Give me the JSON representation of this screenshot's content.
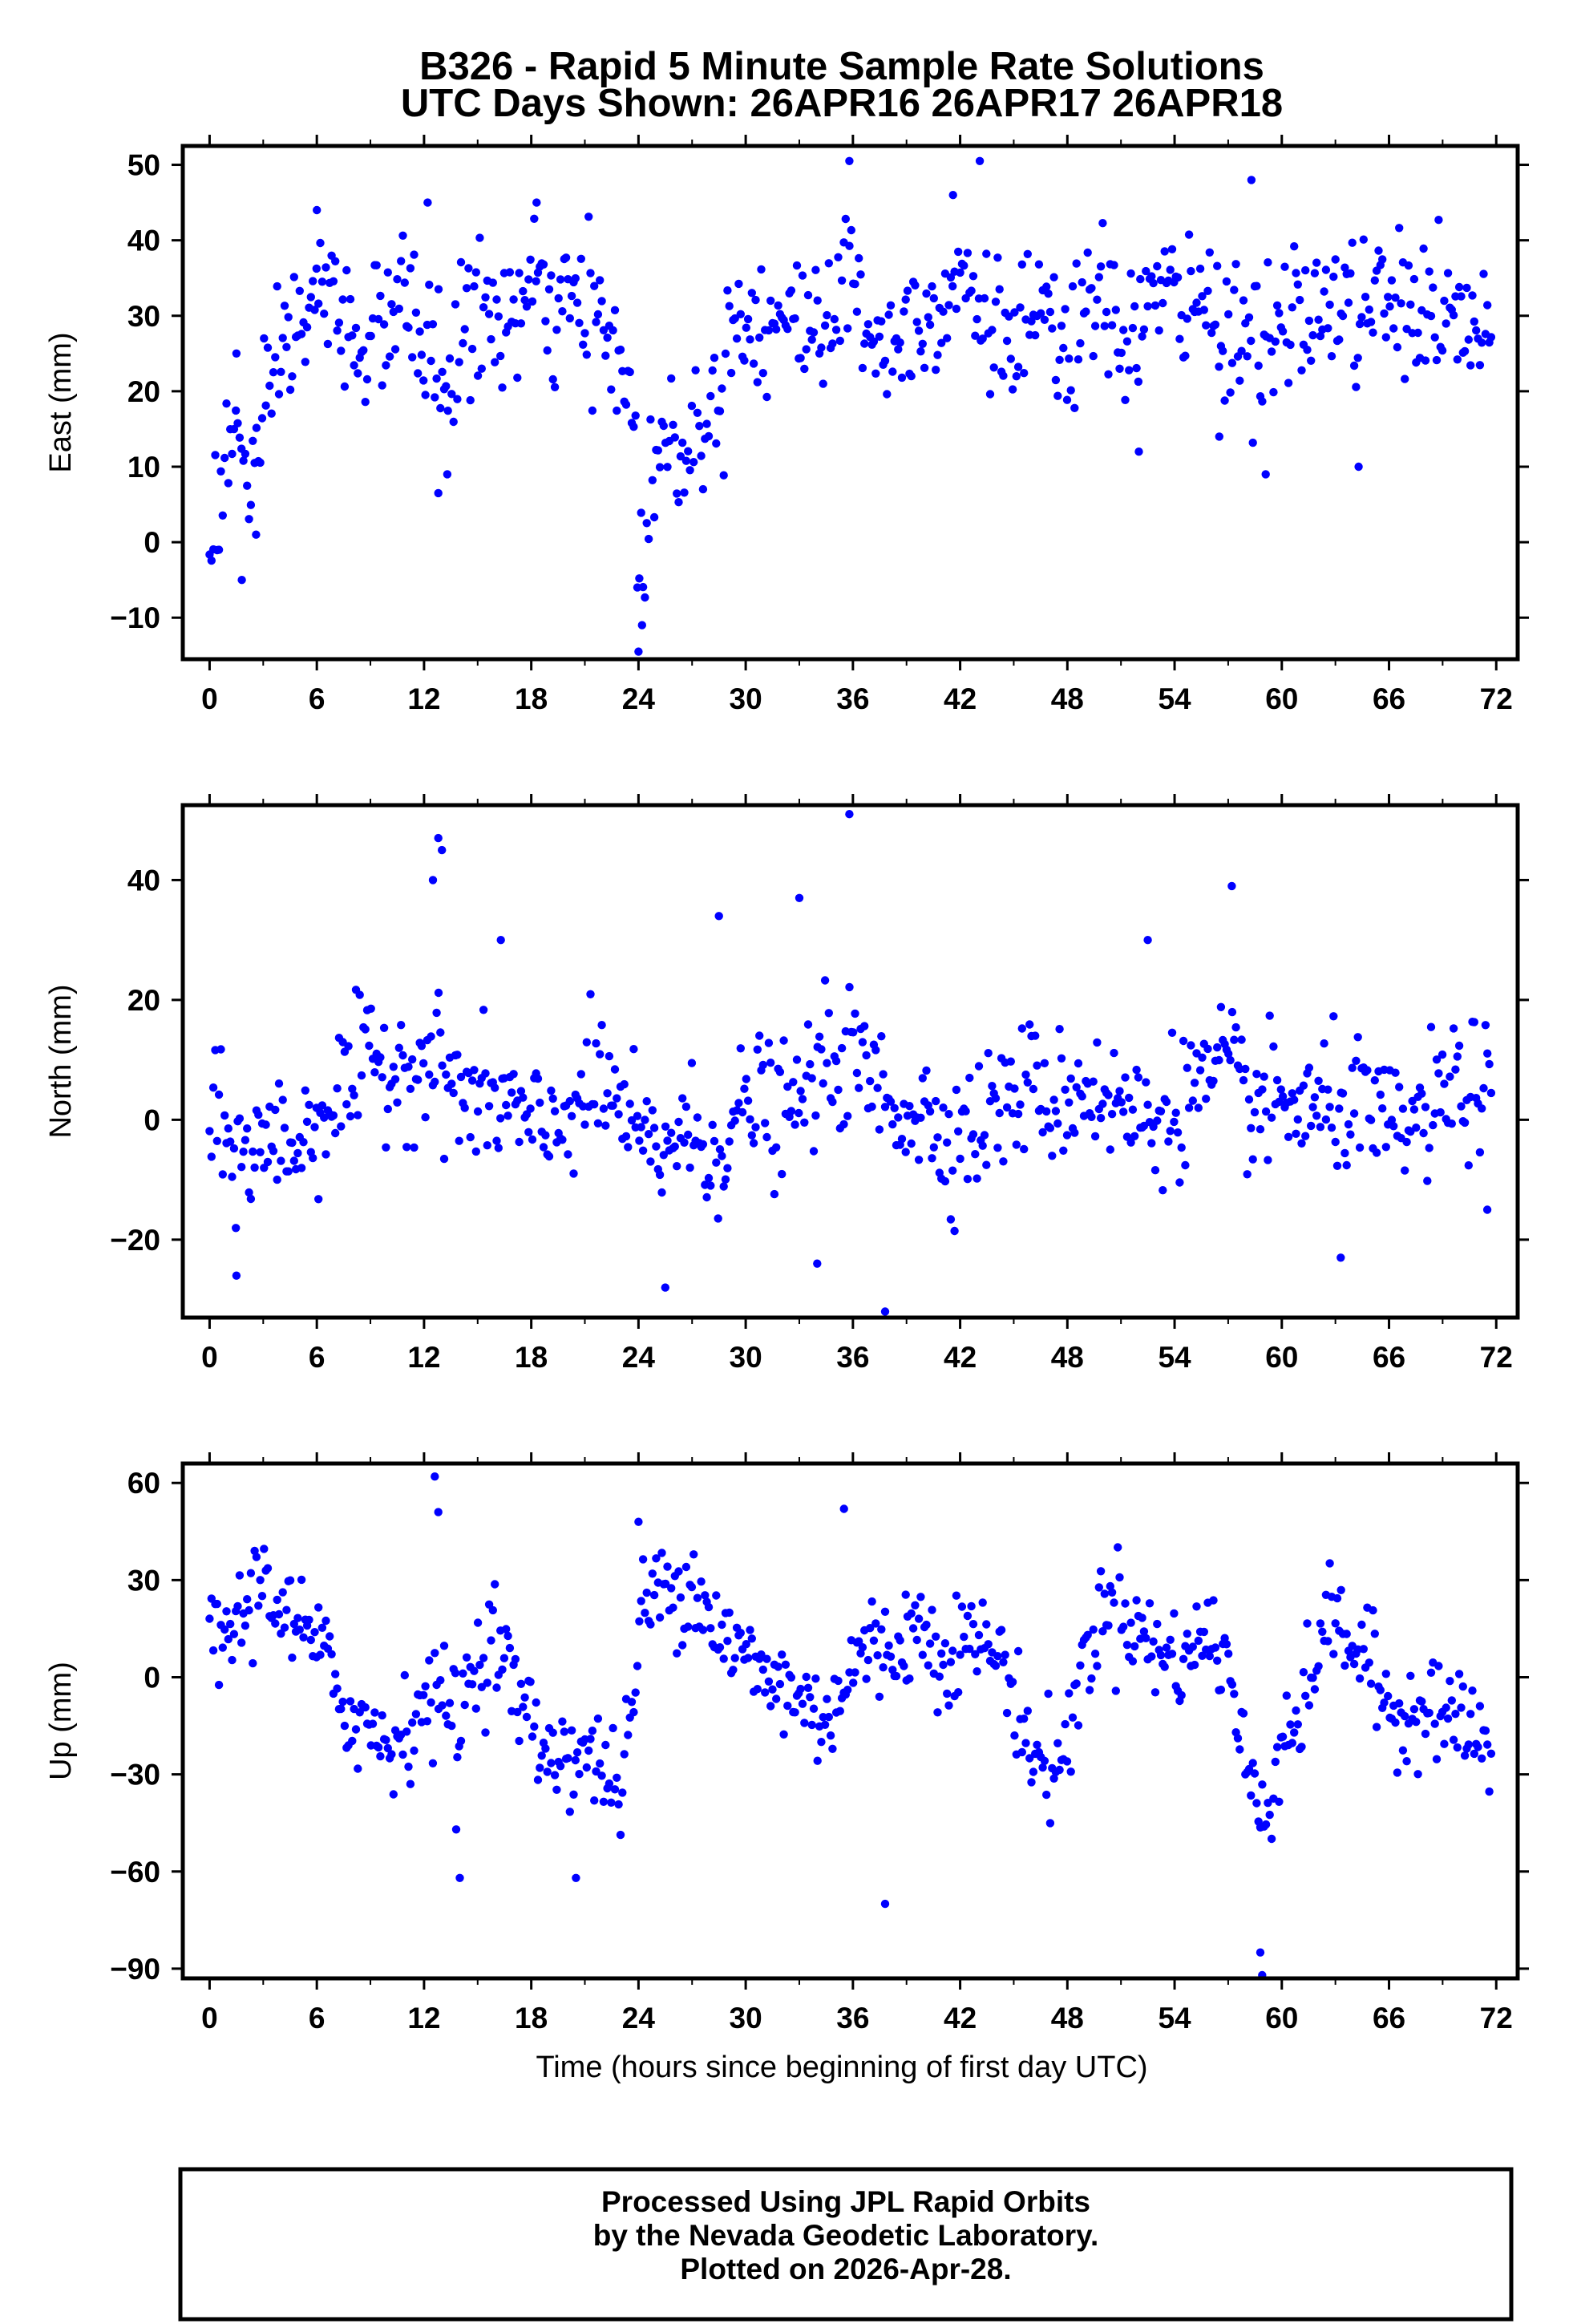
{
  "title_line1": "B326 - Rapid 5 Minute Sample Rate Solutions",
  "title_line2": "UTC Days Shown:  26APR16 26APR17 26APR18",
  "xlabel": "Time (hours since beginning of first day UTC)",
  "footer": {
    "line1": "Processed Using JPL Rapid Orbits",
    "line2": "by the Nevada Geodetic Laboratory.",
    "line3": "Plotted on 2026-Apr-28."
  },
  "colors": {
    "points": "#0000ff",
    "frame": "#000000"
  },
  "chart_data": [
    {
      "type": "scatter",
      "ylabel": "East (mm)",
      "xlim": [
        -1.5,
        73.2
      ],
      "ylim": [
        -15.5,
        52.5
      ],
      "xticks": [
        0,
        6,
        12,
        18,
        24,
        30,
        36,
        42,
        48,
        54,
        60,
        66,
        72
      ],
      "xtick_labels": [
        "0",
        "6",
        "12",
        "18",
        "24",
        "30",
        "36",
        "42",
        "48",
        "54",
        "60",
        "66",
        "72"
      ],
      "yticks": [
        -10,
        0,
        10,
        20,
        30,
        40,
        50
      ],
      "ytick_labels": [
        "−10",
        "0",
        "10",
        "20",
        "30",
        "40",
        "50"
      ],
      "series_name": "east",
      "anchors": [
        [
          0,
          0
        ],
        [
          0.5,
          6
        ],
        [
          1,
          11
        ],
        [
          1.5,
          15
        ],
        [
          2,
          10
        ],
        [
          2.5,
          9
        ],
        [
          3,
          12
        ],
        [
          3.5,
          20
        ],
        [
          4,
          26
        ],
        [
          5,
          28
        ],
        [
          6,
          33
        ],
        [
          7,
          31
        ],
        [
          8,
          28
        ],
        [
          9,
          26
        ],
        [
          10,
          30
        ],
        [
          11,
          31
        ],
        [
          12,
          28
        ],
        [
          13,
          21
        ],
        [
          14,
          26
        ],
        [
          15,
          31
        ],
        [
          16,
          29
        ],
        [
          17,
          30
        ],
        [
          18,
          33
        ],
        [
          19,
          31
        ],
        [
          20,
          30
        ],
        [
          21,
          31
        ],
        [
          22,
          28
        ],
        [
          23,
          24
        ],
        [
          23.7,
          18
        ],
        [
          24,
          -4
        ],
        [
          24.5,
          4
        ],
        [
          25,
          12
        ],
        [
          26,
          13
        ],
        [
          27,
          15
        ],
        [
          28,
          16
        ],
        [
          29,
          27
        ],
        [
          30,
          31
        ],
        [
          31,
          29
        ],
        [
          32,
          30
        ],
        [
          33,
          28
        ],
        [
          34,
          30
        ],
        [
          35,
          32
        ],
        [
          36,
          34
        ],
        [
          37,
          29
        ],
        [
          38,
          26
        ],
        [
          39,
          28
        ],
        [
          40,
          31
        ],
        [
          41,
          33
        ],
        [
          42,
          36
        ],
        [
          43,
          32
        ],
        [
          44,
          28
        ],
        [
          45,
          27
        ],
        [
          46,
          29
        ],
        [
          47,
          27
        ],
        [
          48,
          25
        ],
        [
          49,
          30
        ],
        [
          50,
          31
        ],
        [
          51,
          28
        ],
        [
          52,
          29
        ],
        [
          53,
          33
        ],
        [
          54,
          32
        ],
        [
          55,
          31
        ],
        [
          56,
          31
        ],
        [
          57,
          30
        ],
        [
          58,
          27
        ],
        [
          59,
          25
        ],
        [
          60,
          27
        ],
        [
          61,
          31
        ],
        [
          62,
          30
        ],
        [
          63,
          32
        ],
        [
          64,
          30
        ],
        [
          65,
          31
        ],
        [
          66,
          32
        ],
        [
          67,
          30
        ],
        [
          68,
          32
        ],
        [
          69,
          29
        ],
        [
          70,
          29
        ],
        [
          71,
          28
        ],
        [
          72,
          25
        ]
      ],
      "noise_sd": 4.8,
      "outliers": [
        [
          1.5,
          25
        ],
        [
          1.8,
          -5
        ],
        [
          2.6,
          1
        ],
        [
          6,
          44
        ],
        [
          12.2,
          45
        ],
        [
          12.8,
          6.5
        ],
        [
          13.3,
          9
        ],
        [
          18.3,
          45
        ],
        [
          24,
          -14.5
        ],
        [
          24.2,
          -11
        ],
        [
          35.8,
          50.5
        ],
        [
          41.6,
          46
        ],
        [
          43.1,
          50.5
        ],
        [
          52,
          12
        ],
        [
          56.5,
          14
        ],
        [
          58.3,
          48
        ],
        [
          59.1,
          9
        ],
        [
          64.3,
          10
        ]
      ]
    },
    {
      "type": "scatter",
      "ylabel": "North (mm)",
      "xlim": [
        -1.5,
        73.2
      ],
      "ylim": [
        -33,
        52.5
      ],
      "xticks": [
        0,
        6,
        12,
        18,
        24,
        30,
        36,
        42,
        48,
        54,
        60,
        66,
        72
      ],
      "xtick_labels": [
        "0",
        "6",
        "12",
        "18",
        "24",
        "30",
        "36",
        "42",
        "48",
        "54",
        "60",
        "66",
        "72"
      ],
      "yticks": [
        -20,
        0,
        20,
        40
      ],
      "ytick_labels": [
        "−20",
        "0",
        "20",
        "40"
      ],
      "series_name": "north",
      "anchors": [
        [
          0,
          0
        ],
        [
          1,
          -4
        ],
        [
          2,
          -6
        ],
        [
          3,
          -4
        ],
        [
          4,
          -3
        ],
        [
          5,
          -4
        ],
        [
          6,
          0
        ],
        [
          7,
          4
        ],
        [
          8,
          6
        ],
        [
          9,
          10
        ],
        [
          10,
          9
        ],
        [
          11,
          9
        ],
        [
          12,
          11
        ],
        [
          13,
          8
        ],
        [
          14,
          5
        ],
        [
          15,
          2
        ],
        [
          16,
          3
        ],
        [
          17,
          2
        ],
        [
          18,
          -2
        ],
        [
          19,
          -3
        ],
        [
          20,
          2
        ],
        [
          21,
          4
        ],
        [
          22,
          6
        ],
        [
          23,
          2
        ],
        [
          24,
          -4
        ],
        [
          25,
          -6
        ],
        [
          26,
          -2
        ],
        [
          27,
          -3
        ],
        [
          28,
          -5
        ],
        [
          29,
          -3
        ],
        [
          30,
          2
        ],
        [
          31,
          4
        ],
        [
          32,
          -1
        ],
        [
          33,
          3
        ],
        [
          34,
          8
        ],
        [
          35,
          10
        ],
        [
          36,
          10
        ],
        [
          37,
          7
        ],
        [
          38,
          3
        ],
        [
          39,
          2
        ],
        [
          40,
          1
        ],
        [
          41,
          -2
        ],
        [
          42,
          -2
        ],
        [
          43,
          -1
        ],
        [
          44,
          2
        ],
        [
          45,
          4
        ],
        [
          46,
          6
        ],
        [
          47,
          3
        ],
        [
          48,
          4
        ],
        [
          49,
          6
        ],
        [
          50,
          4
        ],
        [
          51,
          2
        ],
        [
          52,
          0
        ],
        [
          53,
          0
        ],
        [
          54,
          3
        ],
        [
          55,
          5
        ],
        [
          56,
          6
        ],
        [
          57,
          8
        ],
        [
          58,
          4
        ],
        [
          59,
          1
        ],
        [
          60,
          3
        ],
        [
          61,
          2
        ],
        [
          62,
          1
        ],
        [
          63,
          2
        ],
        [
          64,
          3
        ],
        [
          65,
          0
        ],
        [
          66,
          -2
        ],
        [
          67,
          -1
        ],
        [
          68,
          0
        ],
        [
          69,
          3
        ],
        [
          70,
          6
        ],
        [
          71,
          5
        ],
        [
          72,
          4
        ]
      ],
      "noise_sd": 5.5,
      "outliers": [
        [
          1.5,
          -26
        ],
        [
          12.5,
          40
        ],
        [
          12.8,
          47
        ],
        [
          13,
          45
        ],
        [
          16.3,
          30
        ],
        [
          25.5,
          -28
        ],
        [
          28.5,
          34
        ],
        [
          33,
          37
        ],
        [
          34,
          -24
        ],
        [
          35.8,
          51
        ],
        [
          37.8,
          -32
        ],
        [
          52.5,
          30
        ],
        [
          57.2,
          39
        ],
        [
          63.3,
          -23
        ],
        [
          71.5,
          -15
        ]
      ]
    },
    {
      "type": "scatter",
      "ylabel": "Up (mm)",
      "xlim": [
        -1.5,
        73.2
      ],
      "ylim": [
        -93,
        66
      ],
      "xticks": [
        0,
        6,
        12,
        18,
        24,
        30,
        36,
        42,
        48,
        54,
        60,
        66,
        72
      ],
      "xtick_labels": [
        "0",
        "6",
        "12",
        "18",
        "24",
        "30",
        "36",
        "42",
        "48",
        "54",
        "60",
        "66",
        "72"
      ],
      "yticks": [
        -90,
        -60,
        -30,
        0,
        30,
        60
      ],
      "ytick_labels": [
        "−90",
        "−60",
        "−30",
        "0",
        "30",
        "60"
      ],
      "series_name": "up",
      "anchors": [
        [
          0,
          10
        ],
        [
          1,
          14
        ],
        [
          2,
          20
        ],
        [
          3,
          32
        ],
        [
          4,
          22
        ],
        [
          5,
          14
        ],
        [
          6,
          10
        ],
        [
          7,
          -2
        ],
        [
          8,
          -12
        ],
        [
          9,
          -16
        ],
        [
          10,
          -20
        ],
        [
          11,
          -16
        ],
        [
          12,
          -6
        ],
        [
          13,
          -8
        ],
        [
          14,
          -10
        ],
        [
          15,
          6
        ],
        [
          16,
          14
        ],
        [
          17,
          -2
        ],
        [
          18,
          -16
        ],
        [
          19,
          -24
        ],
        [
          20,
          -22
        ],
        [
          21,
          -24
        ],
        [
          22,
          -28
        ],
        [
          23,
          -34
        ],
        [
          23.6,
          -14
        ],
        [
          24.2,
          22
        ],
        [
          25,
          26
        ],
        [
          26,
          28
        ],
        [
          27,
          30
        ],
        [
          28,
          20
        ],
        [
          29,
          10
        ],
        [
          30,
          6
        ],
        [
          31,
          0
        ],
        [
          32,
          -2
        ],
        [
          33,
          -6
        ],
        [
          34,
          -12
        ],
        [
          35,
          -8
        ],
        [
          36,
          4
        ],
        [
          37,
          10
        ],
        [
          38,
          6
        ],
        [
          39,
          16
        ],
        [
          40,
          14
        ],
        [
          41,
          8
        ],
        [
          42,
          10
        ],
        [
          43,
          12
        ],
        [
          44,
          8
        ],
        [
          45,
          -4
        ],
        [
          46,
          -24
        ],
        [
          47,
          -28
        ],
        [
          48,
          -22
        ],
        [
          49,
          8
        ],
        [
          50,
          20
        ],
        [
          51,
          24
        ],
        [
          52,
          14
        ],
        [
          53,
          8
        ],
        [
          54,
          6
        ],
        [
          55,
          8
        ],
        [
          56,
          14
        ],
        [
          57,
          4
        ],
        [
          58,
          -30
        ],
        [
          59,
          -40
        ],
        [
          59.7,
          -28
        ],
        [
          60.3,
          -10
        ],
        [
          61,
          -18
        ],
        [
          62,
          12
        ],
        [
          63,
          18
        ],
        [
          64,
          10
        ],
        [
          65,
          2
        ],
        [
          66,
          -10
        ],
        [
          67,
          -12
        ],
        [
          68,
          -6
        ],
        [
          69,
          -10
        ],
        [
          70,
          -14
        ],
        [
          71,
          -18
        ],
        [
          72,
          -26
        ]
      ],
      "noise_sd": 8,
      "outliers": [
        [
          12.6,
          62
        ],
        [
          12.8,
          51
        ],
        [
          14,
          -62
        ],
        [
          20.5,
          -62
        ],
        [
          37.8,
          -70
        ],
        [
          58.8,
          -85
        ],
        [
          58.9,
          -92
        ],
        [
          35.5,
          52
        ],
        [
          24,
          48
        ],
        [
          13.8,
          -47
        ],
        [
          39,
          -1
        ]
      ]
    }
  ]
}
